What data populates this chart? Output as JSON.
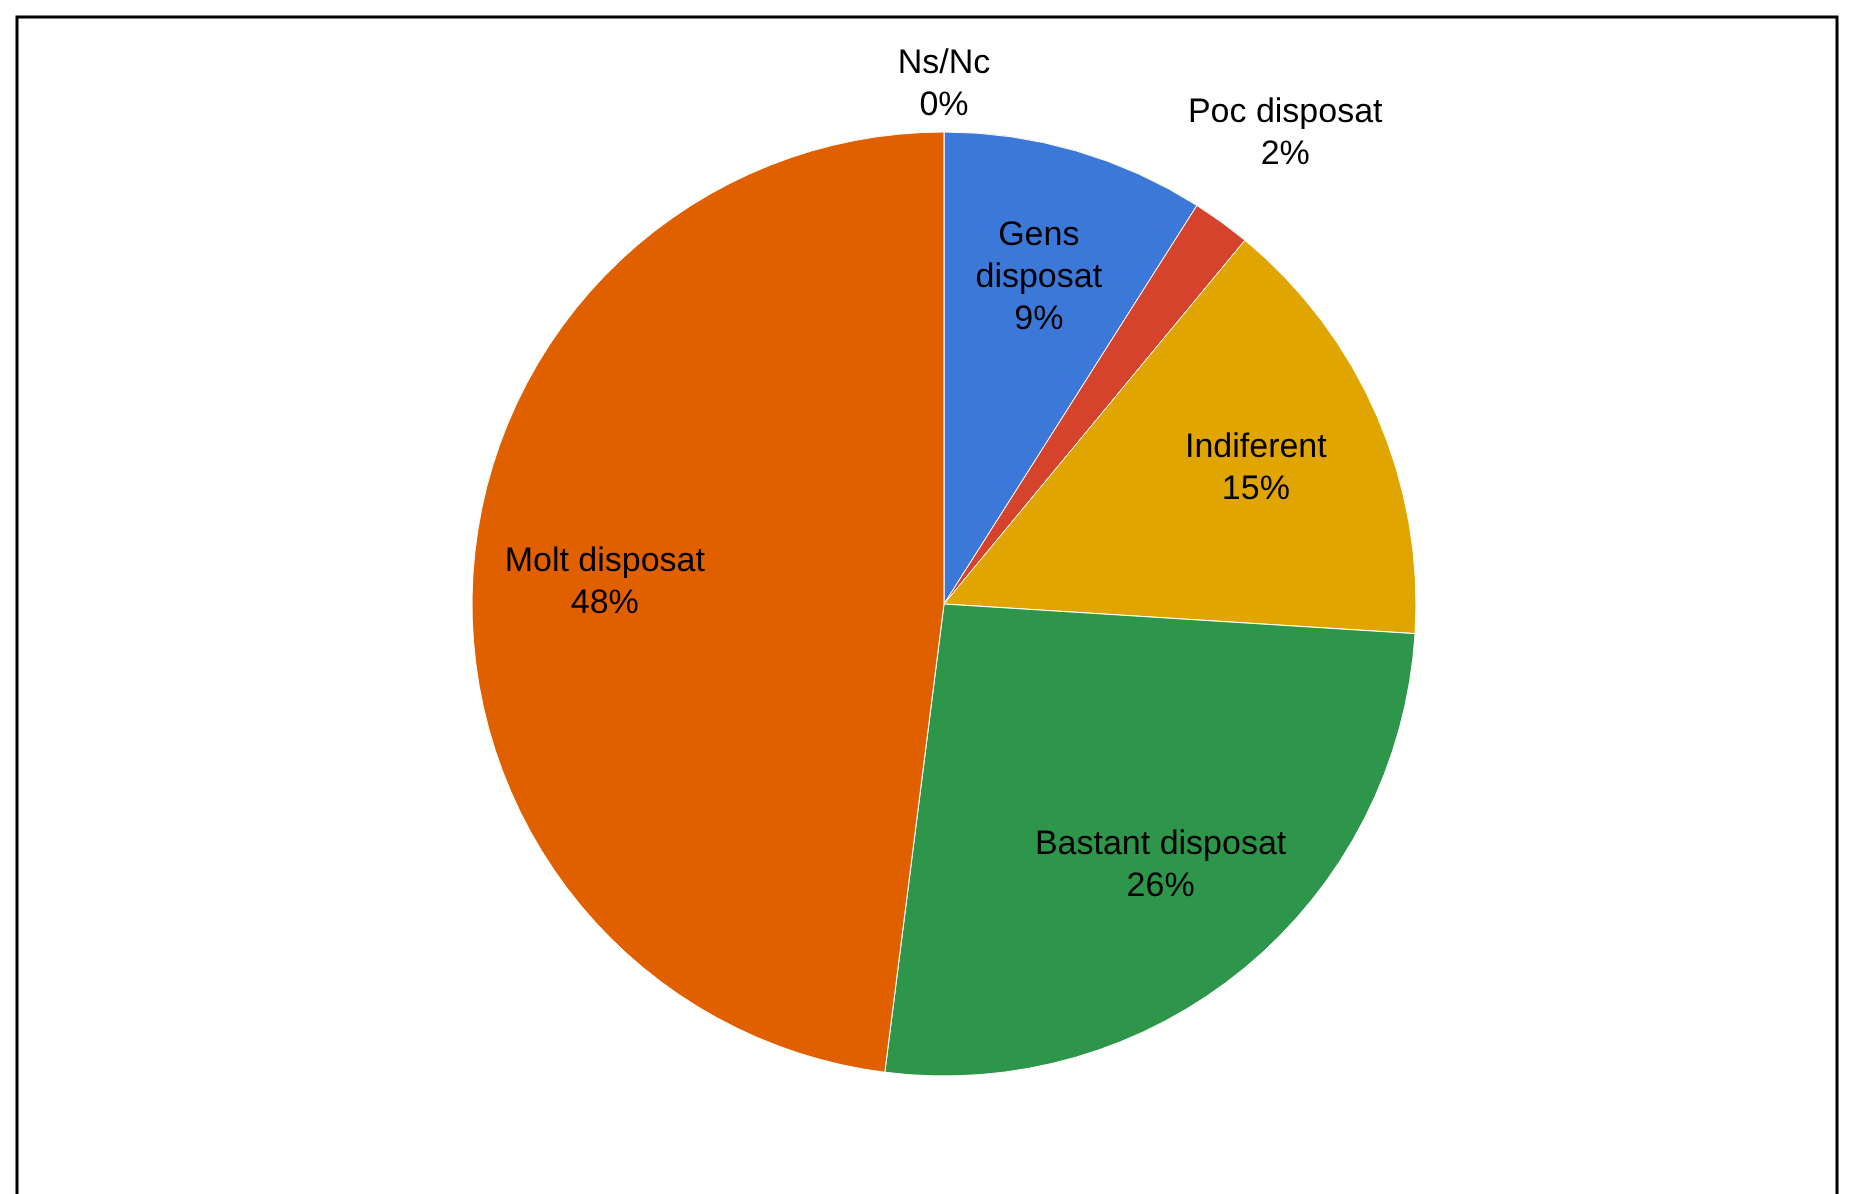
{
  "chart_data": {
    "type": "pie",
    "categories": [
      "Ns/Nc",
      "Gens disposat",
      "Poc disposat",
      "Indiferent",
      "Bastant disposat",
      "Molt disposat"
    ],
    "values": [
      0,
      9,
      2,
      15,
      26,
      48
    ],
    "value_labels": [
      "0%",
      "9%",
      "2%",
      "15%",
      "26%",
      "48%"
    ],
    "colors": [
      "#3366cc",
      "#3c78d8",
      "#d5432d",
      "#e0a500",
      "#2e964a",
      "#e06000"
    ]
  }
}
